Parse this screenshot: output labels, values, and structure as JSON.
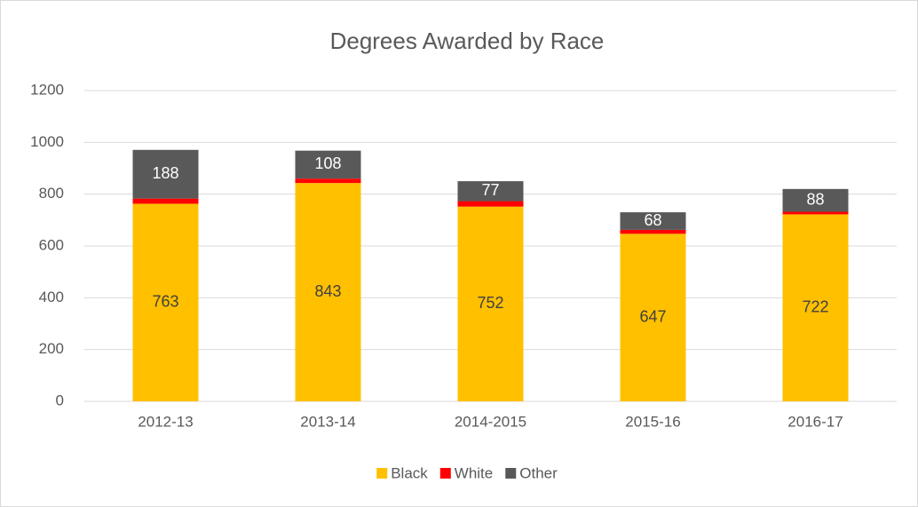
{
  "chart_data": {
    "type": "stacked_bar",
    "title": "Degrees Awarded by Race",
    "categories": [
      "2012-13",
      "2013-14",
      "2014-2015",
      "2015-16",
      "2016-17"
    ],
    "series": [
      {
        "name": "Black",
        "color": "#FFC000",
        "values": [
          763,
          843,
          752,
          647,
          722
        ],
        "data_labels": true
      },
      {
        "name": "White",
        "color": "#FF0000",
        "values": [
          20,
          17,
          21,
          15,
          10
        ],
        "data_labels": false
      },
      {
        "name": "Other",
        "color": "#595959",
        "values": [
          188,
          108,
          77,
          68,
          88
        ],
        "data_labels": true
      }
    ],
    "ylim": [
      0,
      1200
    ],
    "yticks": [
      0,
      200,
      400,
      600,
      800,
      1000,
      1200
    ],
    "grid": true,
    "legend": "bottom"
  }
}
